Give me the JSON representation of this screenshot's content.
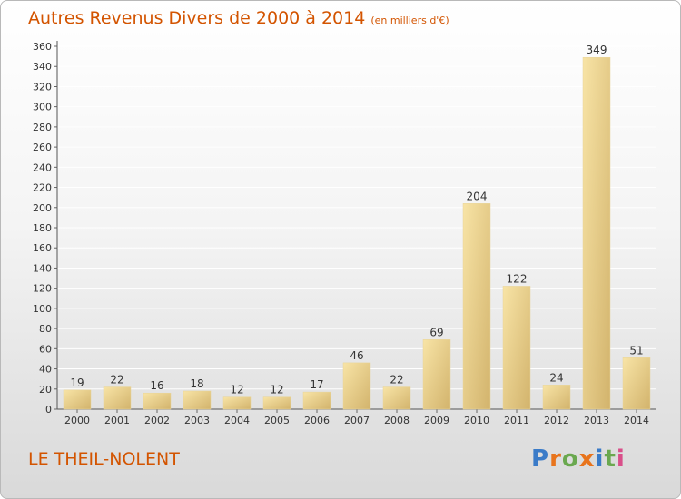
{
  "title": "Autres Revenus Divers de 2000 à 2014",
  "unit": "(en milliers d'€)",
  "location": "LE THEIL-NOLENT",
  "logo": {
    "text": "Proxiti",
    "colors": [
      "#3a7bc8",
      "#e8741c",
      "#6aa84f",
      "#e8741c",
      "#3a7bc8",
      "#6aa84f",
      "#d94f8a"
    ]
  },
  "colors": {
    "bar_light": "#f8e4a6",
    "bar_dark": "#d2b36c",
    "text": "#d35400",
    "grid": "#ffffff"
  },
  "chart_data": {
    "type": "bar",
    "categories": [
      "2000",
      "2001",
      "2002",
      "2003",
      "2004",
      "2005",
      "2006",
      "2007",
      "2008",
      "2009",
      "2010",
      "2011",
      "2012",
      "2013",
      "2014"
    ],
    "values": [
      19,
      22,
      16,
      18,
      12,
      12,
      17,
      46,
      22,
      69,
      204,
      122,
      24,
      349,
      51
    ],
    "ylim": [
      0,
      360
    ],
    "yticks": [
      0,
      20,
      40,
      60,
      80,
      100,
      120,
      140,
      160,
      180,
      200,
      220,
      240,
      260,
      280,
      300,
      320,
      340,
      360
    ],
    "grid": true,
    "data_labels": true
  }
}
